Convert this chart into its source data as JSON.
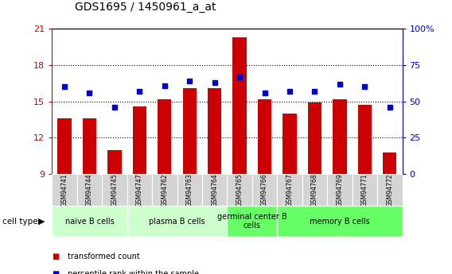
{
  "title": "GDS1695 / 1450961_a_at",
  "samples": [
    "GSM94741",
    "GSM94744",
    "GSM94745",
    "GSM94747",
    "GSM94762",
    "GSM94763",
    "GSM94764",
    "GSM94765",
    "GSM94766",
    "GSM94767",
    "GSM94768",
    "GSM94769",
    "GSM94771",
    "GSM94772"
  ],
  "transformed_count": [
    13.6,
    13.6,
    11.0,
    14.6,
    15.2,
    16.1,
    16.1,
    20.3,
    15.2,
    14.0,
    14.9,
    15.2,
    14.7,
    10.8
  ],
  "percentile_rank": [
    60,
    56,
    46,
    57,
    61,
    64,
    63,
    67,
    56,
    57,
    57,
    62,
    60,
    46
  ],
  "bar_color": "#cc0000",
  "dot_color": "#0000cc",
  "ymin": 9,
  "ymax": 21,
  "yticks": [
    9,
    12,
    15,
    18,
    21
  ],
  "y2min": 0,
  "y2max": 100,
  "y2ticks": [
    0,
    25,
    50,
    75,
    100
  ],
  "y2ticklabels": [
    "0",
    "25",
    "50",
    "75",
    "100%"
  ],
  "groups": [
    {
      "label": "naive B cells",
      "start": 0,
      "end": 3,
      "color": "#ccffcc"
    },
    {
      "label": "plasma B cells",
      "start": 3,
      "end": 7,
      "color": "#ccffcc"
    },
    {
      "label": "germinal center B\ncells",
      "start": 7,
      "end": 9,
      "color": "#66ff66"
    },
    {
      "label": "memory B cells",
      "start": 9,
      "end": 14,
      "color": "#66ff66"
    }
  ],
  "cell_type_label": "cell type",
  "legend_items": [
    {
      "label": "transformed count",
      "color": "#cc0000"
    },
    {
      "label": "percentile rank within the sample",
      "color": "#0000cc"
    }
  ],
  "bg_color": "#ffffff",
  "left_tick_color": "#cc0000",
  "right_tick_color": "#0000cc",
  "sample_bg": "#d4d4d4",
  "grid_linestyle": "dotted",
  "grid_color": "#000000",
  "grid_linewidth": 0.8
}
